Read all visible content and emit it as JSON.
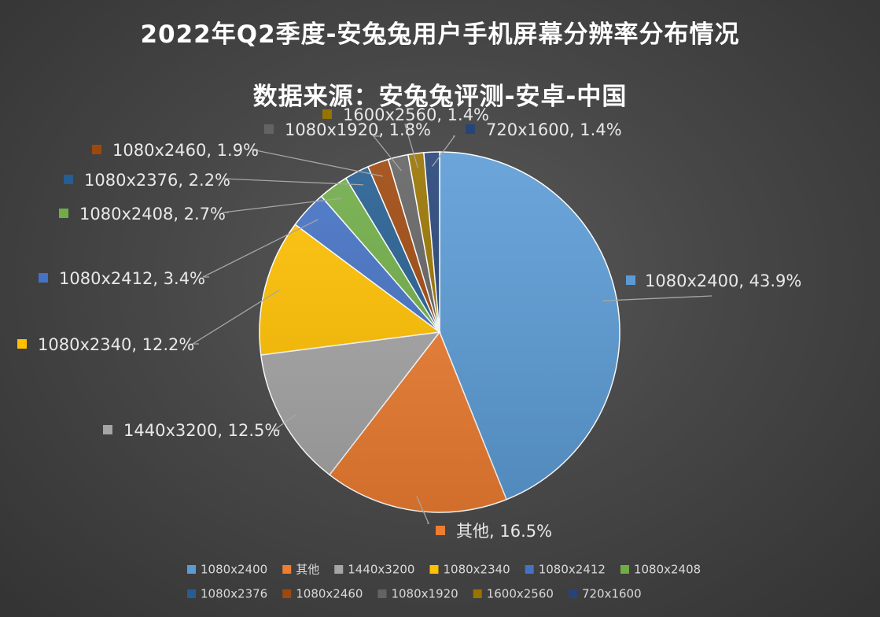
{
  "title": "2022年Q2季度-安兔兔用户手机屏幕分辨率分布情况",
  "subtitle": "数据来源：安兔兔评测-安卓-中国",
  "chart_data": {
    "type": "pie",
    "title": "2022年Q2季度-安兔兔用户手机屏幕分辨率分布情况",
    "subtitle": "数据来源：安兔兔评测-安卓-中国",
    "legend_position": "bottom",
    "slices": [
      {
        "label": "1080x2400",
        "value": 43.9,
        "display": "43.9%",
        "color": "#5b9bd5"
      },
      {
        "label": "其他",
        "value": 16.5,
        "display": "16.5%",
        "color": "#ed7d31"
      },
      {
        "label": "1440x3200",
        "value": 12.5,
        "display": "12.5%",
        "color": "#a5a5a5"
      },
      {
        "label": "1080x2340",
        "value": 12.2,
        "display": "12.2%",
        "color": "#ffc000"
      },
      {
        "label": "1080x2412",
        "value": 3.4,
        "display": "3.4%",
        "color": "#4472c4"
      },
      {
        "label": "1080x2408",
        "value": 2.7,
        "display": "2.7%",
        "color": "#70ad47"
      },
      {
        "label": "1080x2376",
        "value": 2.2,
        "display": "2.2%",
        "color": "#255e91"
      },
      {
        "label": "1080x2460",
        "value": 1.9,
        "display": "1.9%",
        "color": "#9e480e"
      },
      {
        "label": "1080x1920",
        "value": 1.8,
        "display": "1.8%",
        "color": "#636363"
      },
      {
        "label": "1600x2560",
        "value": 1.4,
        "display": "1.4%",
        "color": "#997300"
      },
      {
        "label": "720x1600",
        "value": 1.4,
        "display": "1.4%",
        "color": "#264478"
      }
    ]
  }
}
